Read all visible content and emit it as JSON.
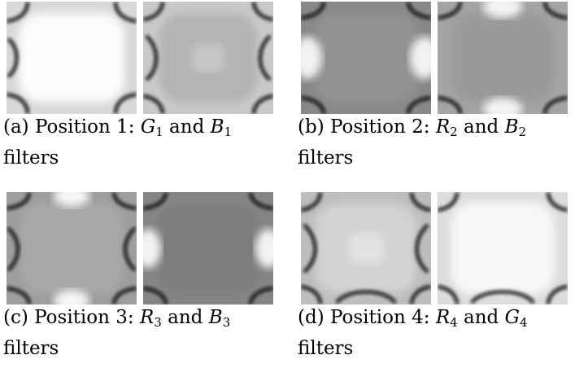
{
  "panels": [
    {
      "label": "(a)",
      "text": "Position 1:",
      "v1": "G",
      "v1_sub": "1",
      "and": "and",
      "v2": "B",
      "v2_sub": "1",
      "line2": "filters",
      "left_image": "filter-visualization-green-position-1",
      "right_image": "filter-visualization-blue-position-1"
    },
    {
      "label": "(b)",
      "text": "Position 2:",
      "v1": "R",
      "v1_sub": "2",
      "and": "and",
      "v2": "B",
      "v2_sub": "2",
      "line2": "filters",
      "left_image": "filter-visualization-red-position-2",
      "right_image": "filter-visualization-blue-position-2"
    },
    {
      "label": "(c)",
      "text": "Position 3:",
      "v1": "R",
      "v1_sub": "3",
      "and": "and",
      "v2": "B",
      "v2_sub": "3",
      "line2": "filters",
      "left_image": "filter-visualization-red-position-3",
      "right_image": "filter-visualization-blue-position-3"
    },
    {
      "label": "(d)",
      "text": "Position 4:",
      "v1": "R",
      "v1_sub": "4",
      "and": "and",
      "v2": "G",
      "v2_sub": "4",
      "line2": "filters",
      "left_image": "filter-visualization-red-position-4",
      "right_image": "filter-visualization-green-position-4"
    }
  ]
}
